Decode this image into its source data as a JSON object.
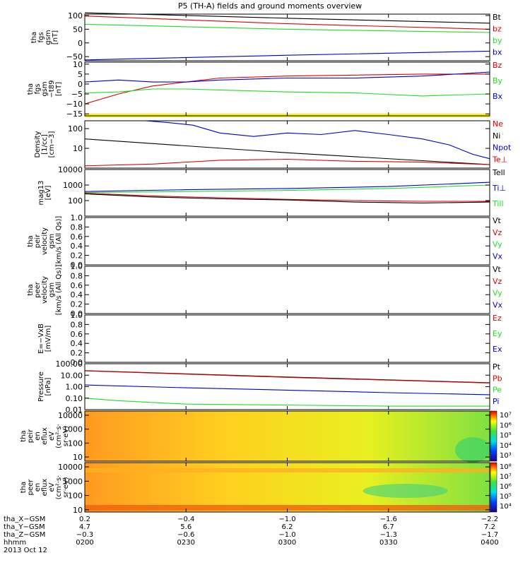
{
  "title": "P5 (TH-A) fields and ground moments overview",
  "colors": {
    "black": "#000000",
    "red": "#dd0000",
    "green": "#22dd22",
    "blue": "#0000cc",
    "yellow": "#ffee00"
  },
  "chart_data": [
    {
      "type": "line",
      "ylabel_lines": [
        "tha",
        "fgs",
        "gsm",
        "[nT]"
      ],
      "ylim": [
        -65,
        105
      ],
      "yticks": [
        -50,
        0,
        50,
        100
      ],
      "yticklabels": [
        "−50",
        "0",
        "50",
        "100"
      ],
      "legend": [
        {
          "label": "Bt",
          "color": "black"
        },
        {
          "label": "bz",
          "color": "red"
        },
        {
          "label": "by",
          "color": "green"
        },
        {
          "label": "bx",
          "color": "blue"
        }
      ],
      "series": [
        {
          "name": "Bt",
          "color": "black",
          "x": [
            0,
            60,
            120
          ],
          "y": [
            110,
            90,
            72
          ]
        },
        {
          "name": "bz",
          "color": "red",
          "x": [
            0,
            60,
            120
          ],
          "y": [
            98,
            70,
            50
          ]
        },
        {
          "name": "by",
          "color": "green",
          "x": [
            0,
            60,
            120
          ],
          "y": [
            68,
            50,
            38
          ]
        },
        {
          "name": "bx",
          "color": "blue",
          "x": [
            0,
            60,
            120
          ],
          "y": [
            -62,
            -45,
            -30
          ]
        }
      ]
    },
    {
      "type": "line",
      "ylabel_lines": [
        "tha",
        "fgs",
        "gsm",
        "−t89",
        "[nT]"
      ],
      "ylim": [
        -16,
        11
      ],
      "yticks": [
        -15,
        -10,
        -5,
        0,
        5,
        10
      ],
      "yticklabels": [
        "−15",
        "−10",
        "−5",
        "0",
        "5",
        "10"
      ],
      "legend": [
        {
          "label": "Bz",
          "color": "red"
        },
        {
          "label": "By",
          "color": "green"
        },
        {
          "label": "Bx",
          "color": "blue"
        }
      ],
      "series": [
        {
          "name": "Bz",
          "color": "red",
          "x": [
            0,
            10,
            20,
            30,
            40,
            60,
            80,
            100,
            120
          ],
          "y": [
            -10,
            -5,
            -1,
            1,
            3,
            4,
            4.5,
            5,
            5
          ]
        },
        {
          "name": "By",
          "color": "green",
          "x": [
            0,
            10,
            20,
            30,
            40,
            60,
            80,
            100,
            120
          ],
          "y": [
            -4.5,
            -4,
            -2.5,
            -2.5,
            -3,
            -4,
            -4.5,
            -6,
            -5
          ]
        },
        {
          "name": "Bx",
          "color": "blue",
          "x": [
            0,
            10,
            20,
            30,
            40,
            60,
            80,
            100,
            120
          ],
          "y": [
            1,
            2,
            1,
            1,
            2,
            3,
            3,
            4,
            6
          ]
        }
      ]
    },
    {
      "type": "line",
      "yscale": "log",
      "ylabel_lines": [
        "Density",
        "[1/cc]",
        "[cm−3]"
      ],
      "ylim": [
        1,
        250
      ],
      "yticks": [
        10,
        100
      ],
      "yticklabels": [
        "10",
        "100"
      ],
      "legend": [
        {
          "label": "Ne",
          "color": "red"
        },
        {
          "label": "Ni",
          "color": "black"
        },
        {
          "label": "Npot",
          "color": "blue"
        },
        {
          "label": "Te⊥",
          "color": "red"
        }
      ],
      "series": [
        {
          "name": "Ni",
          "color": "black",
          "x": [
            0,
            60,
            120
          ],
          "y": [
            30,
            6,
            1.5
          ]
        },
        {
          "name": "Ne",
          "color": "red",
          "x": [
            0,
            20,
            40,
            60,
            80,
            100,
            120
          ],
          "y": [
            1.3,
            1.6,
            2.5,
            2.8,
            2.2,
            2,
            1.5
          ]
        },
        {
          "name": "Npot",
          "color": "blue",
          "x": [
            18,
            25,
            32,
            40,
            50,
            60,
            70,
            80,
            90,
            100,
            108,
            115,
            120
          ],
          "y": [
            250,
            200,
            150,
            60,
            40,
            60,
            50,
            80,
            50,
            30,
            15,
            5,
            3
          ]
        }
      ]
    },
    {
      "type": "line",
      "yscale": "log",
      "ylabel_lines": [
        "mag13",
        "[eV]"
      ],
      "ylim": [
        10,
        10000
      ],
      "yticks": [
        100,
        1000,
        10000
      ],
      "yticklabels": [
        "100",
        "1000",
        "10000"
      ],
      "legend": [
        {
          "label": "Tell",
          "color": "black"
        },
        {
          "label": "Ti⊥",
          "color": "blue"
        },
        {
          "label": "Till",
          "color": "green"
        }
      ],
      "series": [
        {
          "name": "Ti⊥",
          "color": "blue",
          "x": [
            0,
            30,
            60,
            90,
            120
          ],
          "y": [
            380,
            500,
            600,
            800,
            1500
          ]
        },
        {
          "name": "Till",
          "color": "green",
          "x": [
            0,
            30,
            60,
            90,
            120
          ],
          "y": [
            330,
            380,
            450,
            600,
            1000
          ]
        },
        {
          "name": "Te⊥",
          "color": "red",
          "x": [
            0,
            20,
            40,
            60,
            80,
            100,
            120
          ],
          "y": [
            300,
            200,
            150,
            120,
            100,
            90,
            90
          ]
        },
        {
          "name": "Tell",
          "color": "black",
          "x": [
            0,
            20,
            40,
            60,
            80,
            100,
            120
          ],
          "y": [
            270,
            170,
            130,
            110,
            80,
            70,
            80
          ]
        }
      ]
    },
    {
      "type": "line",
      "ylabel_lines": [
        "tha",
        "peir",
        "velocity",
        "gsm",
        "[km/s (All Qs)]"
      ],
      "ylim": [
        0,
        1
      ],
      "yticks": [
        0,
        0.2,
        0.4,
        0.6,
        0.8,
        1.0
      ],
      "yticklabels": [
        "0.0",
        "0.2",
        "0.4",
        "0.6",
        "0.8",
        "1.0"
      ],
      "legend": [
        {
          "label": "Vt",
          "color": "black"
        },
        {
          "label": "Vz",
          "color": "red"
        },
        {
          "label": "Vy",
          "color": "green"
        },
        {
          "label": "Vx",
          "color": "blue"
        }
      ],
      "series": []
    },
    {
      "type": "line",
      "ylabel_lines": [
        "tha",
        "peer",
        "velocity",
        "gsm",
        "[km/s (All Qs)]"
      ],
      "ylim": [
        0,
        1
      ],
      "yticks": [
        0,
        0.2,
        0.4,
        0.6,
        0.8,
        1.0
      ],
      "yticklabels": [
        "0.0",
        "0.2",
        "0.4",
        "0.6",
        "0.8",
        "1.0"
      ],
      "legend": [
        {
          "label": "Vt",
          "color": "black"
        },
        {
          "label": "Vz",
          "color": "red"
        },
        {
          "label": "Vy",
          "color": "green"
        },
        {
          "label": "Vx",
          "color": "blue"
        }
      ],
      "series": []
    },
    {
      "type": "line",
      "ylabel_lines": [
        "E=−VxB",
        "[mV/m]"
      ],
      "ylim": [
        0,
        1
      ],
      "yticks": [
        0,
        0.2,
        0.4,
        0.6,
        0.8,
        1.0
      ],
      "yticklabels": [
        "0.0",
        "0.2",
        "0.4",
        "0.6",
        "0.8",
        "1.0"
      ],
      "legend": [
        {
          "label": "Ez",
          "color": "red"
        },
        {
          "label": "Ey",
          "color": "green"
        },
        {
          "label": "Ex",
          "color": "blue"
        }
      ],
      "series": []
    },
    {
      "type": "line",
      "yscale": "log",
      "ylabel_lines": [
        "Pressure",
        "[nPa]"
      ],
      "ylim": [
        0.01,
        100
      ],
      "yticks": [
        0.01,
        0.1,
        1,
        10,
        100
      ],
      "yticklabels": [
        "0.01",
        "0.10",
        "1.00",
        "10.00",
        "100.00"
      ],
      "legend": [
        {
          "label": "Pt",
          "color": "black"
        },
        {
          "label": "Pb",
          "color": "red"
        },
        {
          "label": "Pe",
          "color": "green"
        },
        {
          "label": "Pi",
          "color": "blue"
        }
      ],
      "series": [
        {
          "name": "Pt",
          "color": "black",
          "x": [
            0,
            60,
            120
          ],
          "y": [
            25,
            7,
            2.2
          ]
        },
        {
          "name": "Pb",
          "color": "red",
          "x": [
            0,
            60,
            120
          ],
          "y": [
            24,
            6.5,
            2.1
          ]
        },
        {
          "name": "Pi",
          "color": "blue",
          "x": [
            0,
            30,
            60,
            90,
            120
          ],
          "y": [
            1.4,
            0.8,
            0.5,
            0.3,
            0.2
          ]
        },
        {
          "name": "Pe",
          "color": "green",
          "x": [
            0,
            10,
            30,
            60,
            90,
            120
          ],
          "y": [
            0.1,
            0.06,
            0.03,
            0.025,
            0.02,
            0.02
          ]
        }
      ]
    },
    {
      "type": "heatmap",
      "yscale": "log",
      "ylabel_lines": [
        "tha",
        "peir",
        "en",
        "eflux",
        "eV",
        "(cm²·s·",
        "sr·eV)"
      ],
      "ylim": [
        5,
        20000
      ],
      "yticks": [
        10,
        100,
        1000,
        10000
      ],
      "yticklabels": [
        "10",
        "100",
        "1000",
        "10000"
      ],
      "colorbar": {
        "ticks": [
          "10³",
          "10⁴",
          "10⁵",
          "10⁶",
          "10⁷"
        ]
      }
    },
    {
      "type": "heatmap",
      "yscale": "log",
      "ylabel_lines": [
        "tha",
        "peer",
        "en",
        "eflux",
        "eV",
        "(cm²·s·",
        "sr·eV)"
      ],
      "ylim": [
        7,
        20000
      ],
      "yticks": [
        10,
        100,
        1000,
        10000
      ],
      "yticklabels": [
        "10",
        "100",
        "1000",
        "10000"
      ],
      "colorbar": {
        "ticks": [
          "10⁴",
          "10⁵",
          "10⁶",
          "10⁷",
          "10⁸"
        ]
      }
    }
  ],
  "x_axis": {
    "rows": [
      {
        "label": "tha_X−GSM",
        "values": [
          "0.2",
          "−0.4",
          "−1.0",
          "−1.6",
          "−2.2"
        ]
      },
      {
        "label": "tha_Y−GSM",
        "values": [
          "4.7",
          "5.6",
          "6.2",
          "6.7",
          "7.2"
        ]
      },
      {
        "label": "tha_Z−GSM",
        "values": [
          "−0.3",
          "−0.6",
          "−1.0",
          "−1.3",
          "−1.7"
        ]
      },
      {
        "label": "hhmm",
        "values": [
          "0200",
          "0230",
          "0300",
          "0330",
          "0400"
        ]
      }
    ],
    "date": "2013 Oct 12"
  }
}
